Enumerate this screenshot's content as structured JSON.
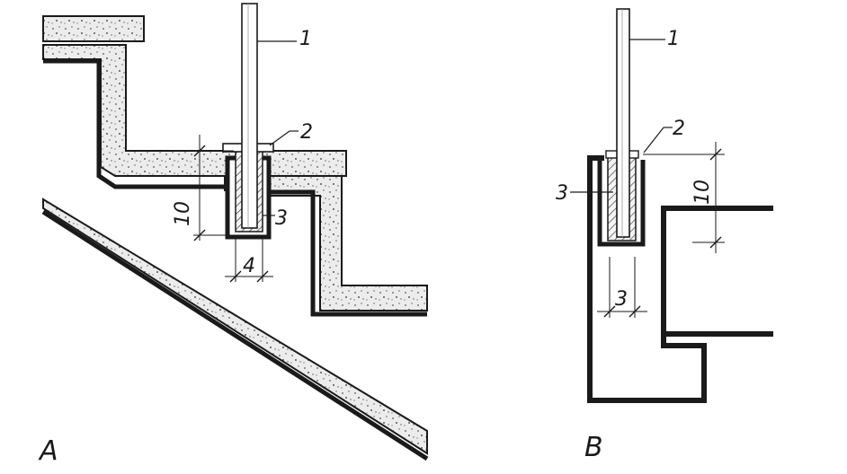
{
  "figure_a": {
    "panel_label": "A",
    "callouts": [
      "1",
      "2",
      "3"
    ],
    "dimensions": {
      "depth": "10",
      "width": "4"
    }
  },
  "figure_b": {
    "panel_label": "B",
    "callouts": [
      "1",
      "2",
      "3"
    ],
    "dimensions": {
      "depth": "10",
      "width": "3"
    }
  },
  "colors": {
    "ink": "#1a1a1a",
    "fill": "#e8e8e8",
    "background": "#ffffff"
  }
}
